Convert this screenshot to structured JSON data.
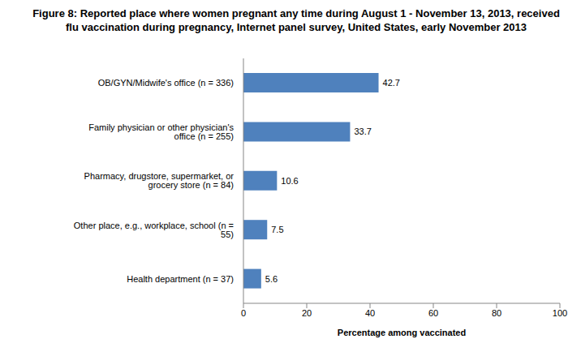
{
  "chart_data": {
    "type": "bar",
    "title": "Figure 8: Reported place where women pregnant any time during August 1 - November 13, 2013, received flu vaccination during pregnancy, Internet panel survey, United States, early November 2013",
    "categories": [
      "OB/GYN/Midwife's office (n = 336)",
      "Family physician or other physician's office (n = 255)",
      "Pharmacy, drugstore, supermarket, or grocery store (n = 84)",
      "Other place, e.g., workplace, school (n = 55)",
      "Health department (n = 37)"
    ],
    "values": [
      42.7,
      33.7,
      10.6,
      7.5,
      5.6
    ],
    "color": "#4f81bd",
    "orientation": "horizontal",
    "xlim": [
      0,
      100
    ],
    "xticks": [
      0,
      20,
      40,
      60,
      80,
      100
    ],
    "xlabel": "Percentage among vaccinated",
    "grid": false,
    "data_labels": true
  }
}
